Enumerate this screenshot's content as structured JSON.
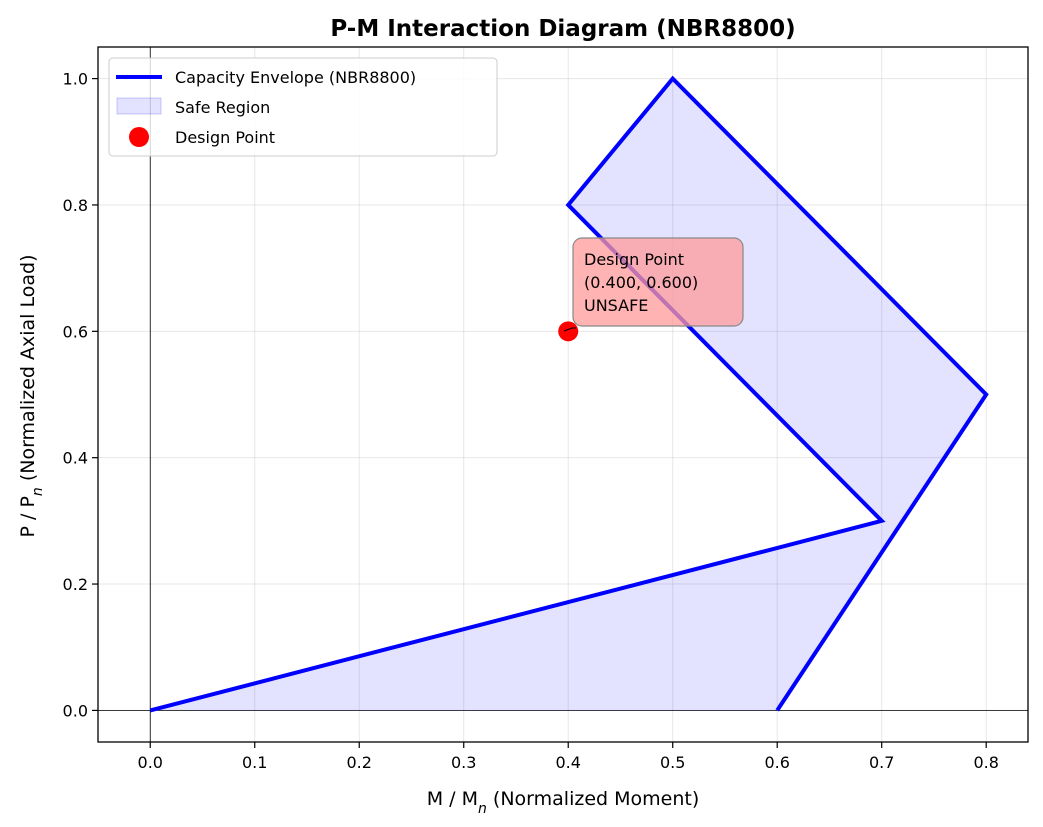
{
  "chart_data": {
    "type": "line",
    "title": "P-M Interaction Diagram (NBR8800)",
    "xlabel": {
      "main": "M / M",
      "sub": "n",
      "rest": " (Normalized Moment)"
    },
    "ylabel": {
      "main": "P / P",
      "sub": "n",
      "rest": " (Normalized Axial Load)"
    },
    "xlim": [
      -0.05,
      0.84
    ],
    "ylim": [
      -0.05,
      1.05
    ],
    "xticks": [
      0.0,
      0.1,
      0.2,
      0.3,
      0.4,
      0.5,
      0.6,
      0.7,
      0.8
    ],
    "yticks": [
      0.0,
      0.2,
      0.4,
      0.6,
      0.8,
      1.0
    ],
    "xtick_labels": [
      "0.0",
      "0.1",
      "0.2",
      "0.3",
      "0.4",
      "0.5",
      "0.6",
      "0.7",
      "0.8"
    ],
    "ytick_labels": [
      "0.0",
      "0.2",
      "0.4",
      "0.6",
      "0.8",
      "1.0"
    ],
    "grid": true,
    "legend_position": "top-left",
    "series": [
      {
        "name": "Capacity Envelope (NBR8800)",
        "color": "#0000ff",
        "x": [
          0.0,
          0.7,
          0.4,
          0.5,
          0.8,
          0.6
        ],
        "y": [
          0.0,
          0.3,
          0.8,
          1.0,
          0.5,
          0.0
        ]
      },
      {
        "name": "Safe Region",
        "color": "#0000ff",
        "fill_opacity": 0.11,
        "x": [
          0.0,
          0.7,
          0.4,
          0.5,
          0.8,
          0.6
        ],
        "y": [
          0.0,
          0.3,
          0.8,
          1.0,
          0.5,
          0.0
        ]
      },
      {
        "name": "Design Point",
        "color": "#ff0000",
        "x": [
          0.4
        ],
        "y": [
          0.6
        ]
      }
    ],
    "annotation": {
      "lines": [
        "Design Point",
        "(0.400, 0.600)",
        "UNSAFE"
      ],
      "box_color": "#ff9999",
      "point": [
        0.4,
        0.6
      ]
    }
  }
}
